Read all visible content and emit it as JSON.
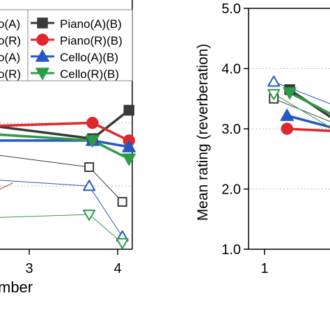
{
  "chart_data": [
    {
      "type": "line",
      "xlabel": "mber",
      "ylabel": "",
      "x_ticks": [
        "3",
        "4"
      ],
      "xlim": [
        0,
        4.2
      ],
      "ylim": [
        1,
        5
      ],
      "legend": {
        "placement": "top",
        "partial_entries": [
          "o(A)",
          "o(R)",
          "o(A)",
          "o(R)"
        ],
        "entries": [
          "Piano(A)(B)",
          "Piano(R)(B)",
          "Cello(A)(B)",
          "Cello(R)(B)"
        ]
      },
      "series": [
        {
          "name": "Piano(A)(B)",
          "color": "#3a3a3a",
          "marker": "square-filled",
          "width": 3.5,
          "x": [
            0,
            3,
            4.1
          ],
          "y": [
            2.95,
            2.75,
            3.2
          ]
        },
        {
          "name": "Piano(R)(B)",
          "color": "#e0282c",
          "marker": "circle-filled",
          "width": 3.5,
          "x": [
            0,
            3,
            4.1
          ],
          "y": [
            2.95,
            3.0,
            2.72
          ]
        },
        {
          "name": "Cello(A)(B)",
          "color": "#2457c8",
          "marker": "triangle-up-filled",
          "width": 3.5,
          "x": [
            0,
            3,
            4.1
          ],
          "y": [
            2.72,
            2.72,
            2.62
          ]
        },
        {
          "name": "Cello(R)(B)",
          "color": "#2e9b48",
          "marker": "triangle-down-filled",
          "width": 3.5,
          "x": [
            0,
            3,
            4.1
          ],
          "y": [
            2.82,
            2.72,
            2.43
          ]
        },
        {
          "name": "",
          "color": "#3a3a3a",
          "marker": "square-open",
          "width": 1,
          "x": [
            0,
            2.9,
            3.9
          ],
          "y": [
            2.5,
            2.3,
            1.75
          ]
        },
        {
          "name": "",
          "color": "#2457c8",
          "marker": "triangle-up-open",
          "width": 1,
          "x": [
            0,
            2.9,
            3.9
          ],
          "y": [
            2.1,
            2.0,
            1.2
          ]
        },
        {
          "name": "",
          "color": "#2e9b48",
          "marker": "triangle-down-open",
          "width": 1,
          "x": [
            0,
            2.9,
            3.9
          ],
          "y": [
            1.5,
            1.55,
            1.1
          ]
        },
        {
          "name": "",
          "color": "#e0282c",
          "marker": "none",
          "width": 1,
          "x": [
            0,
            0.6
          ],
          "y": [
            1.9,
            2.05
          ]
        }
      ]
    },
    {
      "type": "line",
      "xlabel": "",
      "ylabel": "Mean rating (reverberation)",
      "y_ticks": [
        "1.0",
        "2.0",
        "3.0",
        "4.0",
        "5.0"
      ],
      "x_ticks": [
        "1"
      ],
      "xlim": [
        0.6,
        2.1
      ],
      "ylim": [
        1,
        5
      ],
      "grid": "dotted-horizontal",
      "series": [
        {
          "name": "",
          "color": "#3a3a3a",
          "marker": "square-filled",
          "width": 3.5,
          "x": [
            1.22,
            2.1
          ],
          "y": [
            3.65,
            3.0
          ]
        },
        {
          "name": "",
          "color": "#e0282c",
          "marker": "circle-filled",
          "width": 3.5,
          "x": [
            1.18,
            2.1
          ],
          "y": [
            3.0,
            2.95
          ]
        },
        {
          "name": "",
          "color": "#2457c8",
          "marker": "triangle-up-filled",
          "width": 3.5,
          "x": [
            1.18,
            2.1
          ],
          "y": [
            3.22,
            2.95
          ]
        },
        {
          "name": "",
          "color": "#2e9b48",
          "marker": "triangle-down-filled",
          "width": 3.5,
          "x": [
            1.22,
            2.1
          ],
          "y": [
            3.6,
            3.1
          ]
        },
        {
          "name": "",
          "color": "#3a3a3a",
          "marker": "square-open",
          "width": 1,
          "x": [
            0.98,
            2.1
          ],
          "y": [
            3.5,
            3.0
          ]
        },
        {
          "name": "",
          "color": "#2457c8",
          "marker": "triangle-up-open",
          "width": 1,
          "x": [
            0.98,
            2.1
          ],
          "y": [
            3.78,
            3.3
          ]
        },
        {
          "name": "",
          "color": "#2e9b48",
          "marker": "triangle-down-open",
          "width": 1,
          "x": [
            0.98,
            2.1
          ],
          "y": [
            3.58,
            2.85
          ]
        }
      ]
    }
  ]
}
